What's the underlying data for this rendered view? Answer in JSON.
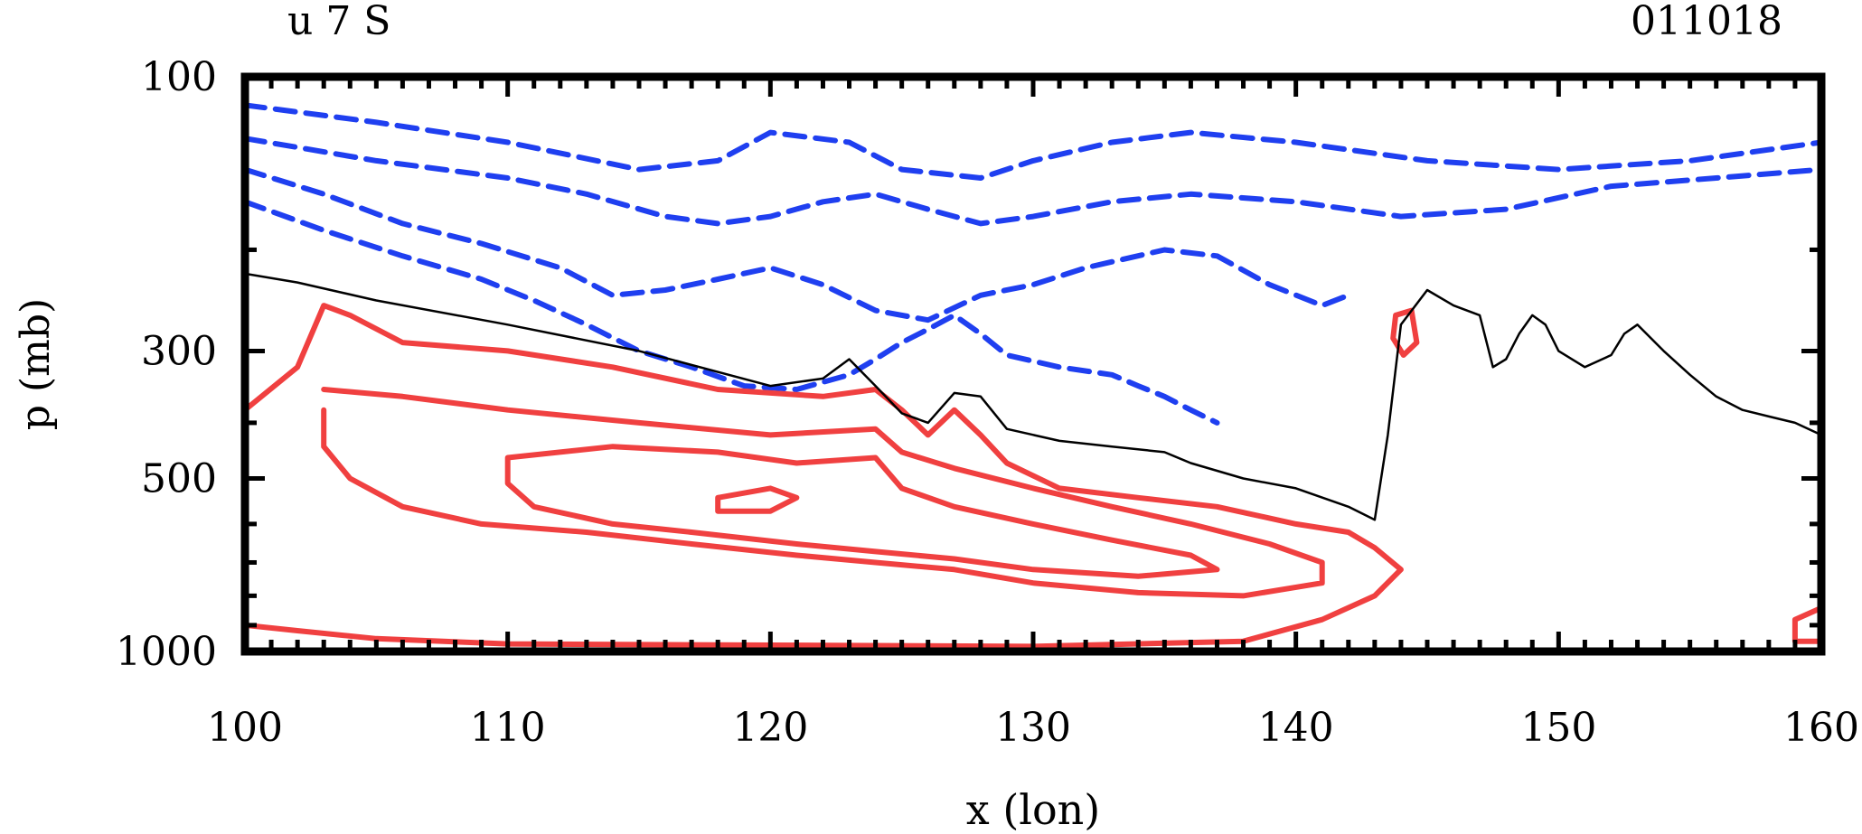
{
  "chart_data": {
    "type": "contour",
    "title": "u 7 S",
    "date_label": "011018",
    "xlabel": "x (lon)",
    "ylabel": "p (mb)",
    "x_ticks": [
      "100",
      "110",
      "120",
      "130",
      "140",
      "150",
      "160"
    ],
    "y_ticks": [
      "100",
      "300",
      "500",
      "1000"
    ],
    "xlim": [
      100,
      160
    ],
    "ylim": [
      1000,
      100
    ],
    "y_scale": "log",
    "colors": {
      "positive": "#f04040",
      "negative": "#1f3ff0",
      "zero": "#000000"
    },
    "zero_contour": [
      [
        100,
        220
      ],
      [
        102,
        228
      ],
      [
        105,
        245
      ],
      [
        110,
        270
      ],
      [
        115,
        300
      ],
      [
        120,
        345
      ],
      [
        122,
        335
      ],
      [
        123,
        310
      ],
      [
        124,
        345
      ],
      [
        125,
        385
      ],
      [
        126,
        400
      ],
      [
        127,
        355
      ],
      [
        128,
        360
      ],
      [
        129,
        410
      ],
      [
        131,
        430
      ],
      [
        133,
        440
      ],
      [
        135,
        450
      ],
      [
        136,
        470
      ],
      [
        138,
        500
      ],
      [
        140,
        520
      ],
      [
        142,
        560
      ],
      [
        143,
        590
      ],
      [
        143.5,
        420
      ],
      [
        144,
        270
      ],
      [
        145,
        235
      ],
      [
        146,
        250
      ],
      [
        147,
        260
      ],
      [
        147.5,
        320
      ],
      [
        148,
        310
      ],
      [
        148.5,
        280
      ],
      [
        149,
        260
      ],
      [
        149.5,
        270
      ],
      [
        150,
        300
      ],
      [
        151,
        320
      ],
      [
        152,
        305
      ],
      [
        152.5,
        280
      ],
      [
        153,
        270
      ],
      [
        154,
        300
      ],
      [
        155,
        330
      ],
      [
        156,
        360
      ],
      [
        157,
        380
      ],
      [
        158,
        390
      ],
      [
        159,
        400
      ],
      [
        160,
        420
      ]
    ],
    "negative_contours": [
      [
        [
          100,
          112
        ],
        [
          105,
          120
        ],
        [
          110,
          130
        ],
        [
          115,
          145
        ],
        [
          118,
          140
        ],
        [
          120,
          125
        ],
        [
          123,
          130
        ],
        [
          125,
          145
        ],
        [
          128,
          150
        ],
        [
          130,
          140
        ],
        [
          133,
          130
        ],
        [
          136,
          125
        ],
        [
          140,
          130
        ],
        [
          145,
          140
        ],
        [
          150,
          145
        ],
        [
          155,
          140
        ],
        [
          160,
          130
        ]
      ],
      [
        [
          100,
          128
        ],
        [
          105,
          140
        ],
        [
          110,
          150
        ],
        [
          113,
          160
        ],
        [
          116,
          175
        ],
        [
          118,
          180
        ],
        [
          120,
          175
        ],
        [
          122,
          165
        ],
        [
          124,
          160
        ],
        [
          126,
          170
        ],
        [
          128,
          180
        ],
        [
          130,
          175
        ],
        [
          133,
          165
        ],
        [
          136,
          160
        ],
        [
          140,
          165
        ],
        [
          144,
          175
        ],
        [
          148,
          170
        ],
        [
          152,
          155
        ],
        [
          156,
          150
        ],
        [
          160,
          145
        ]
      ],
      [
        [
          100,
          145
        ],
        [
          103,
          160
        ],
        [
          106,
          180
        ],
        [
          109,
          195
        ],
        [
          112,
          215
        ],
        [
          114,
          240
        ],
        [
          116,
          235
        ],
        [
          118,
          225
        ],
        [
          120,
          215
        ],
        [
          122,
          230
        ],
        [
          124,
          255
        ],
        [
          126,
          265
        ],
        [
          128,
          240
        ],
        [
          130,
          230
        ],
        [
          132,
          215
        ],
        [
          135,
          200
        ],
        [
          137,
          205
        ],
        [
          139,
          230
        ],
        [
          141,
          250
        ],
        [
          142,
          240
        ]
      ],
      [
        [
          100,
          165
        ],
        [
          103,
          185
        ],
        [
          106,
          205
        ],
        [
          109,
          225
        ],
        [
          111,
          245
        ],
        [
          113,
          270
        ],
        [
          115,
          300
        ],
        [
          117,
          320
        ],
        [
          119,
          345
        ],
        [
          121,
          350
        ],
        [
          123,
          330
        ],
        [
          124,
          310
        ],
        [
          125,
          290
        ],
        [
          126,
          275
        ],
        [
          127,
          260
        ],
        [
          128,
          280
        ],
        [
          129,
          305
        ],
        [
          131,
          320
        ],
        [
          133,
          330
        ],
        [
          134,
          345
        ],
        [
          135,
          360
        ],
        [
          136,
          380
        ],
        [
          137,
          400
        ]
      ]
    ],
    "positive_contours": [
      [
        [
          100,
          380
        ],
        [
          102,
          320
        ],
        [
          103,
          250
        ],
        [
          104,
          260
        ],
        [
          106,
          290
        ],
        [
          110,
          300
        ],
        [
          114,
          320
        ],
        [
          118,
          350
        ],
        [
          122,
          360
        ],
        [
          124,
          350
        ],
        [
          125,
          380
        ],
        [
          126,
          420
        ],
        [
          127,
          380
        ],
        [
          128,
          420
        ],
        [
          129,
          470
        ],
        [
          131,
          520
        ],
        [
          134,
          540
        ],
        [
          137,
          560
        ],
        [
          140,
          600
        ],
        [
          142,
          620
        ],
        [
          143,
          660
        ],
        [
          144,
          720
        ],
        [
          143,
          800
        ],
        [
          141,
          880
        ],
        [
          138,
          960
        ],
        [
          130,
          980
        ],
        [
          120,
          975
        ],
        [
          110,
          970
        ],
        [
          105,
          950
        ],
        [
          102,
          920
        ],
        [
          100,
          900
        ]
      ],
      [
        [
          103,
          350
        ],
        [
          106,
          360
        ],
        [
          110,
          380
        ],
        [
          115,
          400
        ],
        [
          120,
          420
        ],
        [
          124,
          410
        ],
        [
          125,
          450
        ],
        [
          127,
          480
        ],
        [
          130,
          520
        ],
        [
          133,
          560
        ],
        [
          136,
          600
        ],
        [
          139,
          650
        ],
        [
          141,
          700
        ],
        [
          141,
          760
        ],
        [
          138,
          800
        ],
        [
          134,
          790
        ],
        [
          130,
          760
        ],
        [
          127,
          720
        ],
        [
          124,
          700
        ],
        [
          121,
          680
        ],
        [
          117,
          650
        ],
        [
          113,
          620
        ],
        [
          109,
          600
        ],
        [
          106,
          560
        ],
        [
          104,
          500
        ],
        [
          103,
          440
        ],
        [
          103,
          380
        ]
      ],
      [
        [
          110,
          460
        ],
        [
          114,
          440
        ],
        [
          118,
          450
        ],
        [
          121,
          470
        ],
        [
          124,
          460
        ],
        [
          125,
          520
        ],
        [
          127,
          560
        ],
        [
          130,
          600
        ],
        [
          133,
          640
        ],
        [
          136,
          680
        ],
        [
          137,
          720
        ],
        [
          134,
          740
        ],
        [
          130,
          720
        ],
        [
          127,
          690
        ],
        [
          124,
          670
        ],
        [
          121,
          650
        ],
        [
          117,
          620
        ],
        [
          114,
          600
        ],
        [
          111,
          560
        ],
        [
          110,
          510
        ],
        [
          110,
          460
        ]
      ],
      [
        [
          118,
          540
        ],
        [
          120,
          520
        ],
        [
          121,
          540
        ],
        [
          120,
          570
        ],
        [
          118,
          570
        ],
        [
          118,
          540
        ]
      ],
      [
        [
          143.8,
          260
        ],
        [
          144.4,
          255
        ],
        [
          144.6,
          290
        ],
        [
          144.1,
          305
        ],
        [
          143.7,
          285
        ],
        [
          143.8,
          260
        ]
      ],
      [
        [
          159,
          880
        ],
        [
          160,
          840
        ],
        [
          160,
          960
        ],
        [
          159,
          960
        ],
        [
          159,
          880
        ]
      ]
    ]
  }
}
